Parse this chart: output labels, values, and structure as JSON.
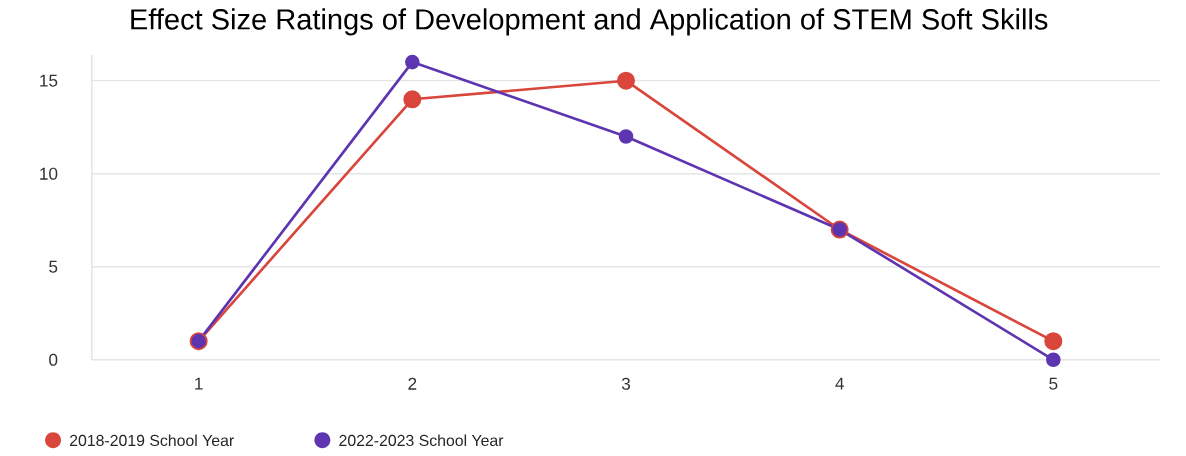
{
  "chart_data": {
    "type": "line",
    "title": "Effect Size Ratings of Development and Application of STEM Soft Skills",
    "categories": [
      "1",
      "2",
      "3",
      "4",
      "5"
    ],
    "series": [
      {
        "name": "2018-2019 School Year",
        "color": "#d9463b",
        "values": [
          1,
          14,
          15,
          7,
          1
        ]
      },
      {
        "name": "2022-2023 School Year",
        "color": "#5e35b1",
        "values": [
          1,
          16,
          12,
          7,
          0
        ]
      }
    ],
    "ylim": [
      0,
      16.4
    ],
    "yticks": [
      0,
      5,
      10,
      15
    ],
    "grid": "y",
    "legend": "bottom left",
    "marker": "circle",
    "line_style": "solid"
  }
}
